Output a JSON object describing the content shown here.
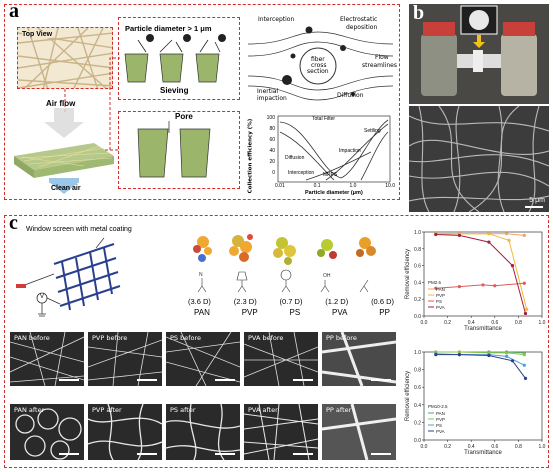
{
  "panel_a": {
    "letter": "a",
    "top_view": "Top View",
    "air_flow": "Air flow",
    "clean_air": "Clean air",
    "particle_diameter": "Particle diameter > 1 μm",
    "sieving": "Sieving",
    "pore": "Pore",
    "mechanisms": {
      "interception": "Interception",
      "electrostatic": "Electrostatic",
      "deposition": "deposition",
      "fiber_cross": "fiber",
      "cross_section": "cross",
      "section": "section",
      "flow": "Flow",
      "streamlines": "streamlines",
      "inertial": "Inertial",
      "impaction": "impaction",
      "diffusion": "Diffusion"
    },
    "efficiency_chart": {
      "ylabel": "Collection efficiency (%)",
      "xlabel": "Particle diameter (μm)",
      "yticks": [
        "100",
        "80",
        "60",
        "40",
        "20",
        "0"
      ],
      "xticks": [
        "0.01",
        "0.1",
        "1.0",
        "10.0"
      ],
      "labels": {
        "total": "Total Filter",
        "settling": "Settling",
        "impaction": "Impaction",
        "diffusion": "Diffusion",
        "interception": "Interception",
        "mpps": "MPPS"
      }
    }
  },
  "panel_b": {
    "letter": "b",
    "scale": "5 μm"
  },
  "panel_c": {
    "letter": "c",
    "window_label": "Window screen with metal coating",
    "v_label": "V",
    "polymers": [
      {
        "dipole": "(3.6 D)",
        "name": "PAN"
      },
      {
        "dipole": "(2.3 D)",
        "name": "PVP"
      },
      {
        "dipole": "(0.7 D)",
        "name": "PS"
      },
      {
        "dipole": "(1.2 D)",
        "name": "PVA"
      },
      {
        "dipole": "(0.6 D)",
        "name": "PP"
      }
    ],
    "sem_before": [
      "PAN before",
      "PVP before",
      "PS before",
      "PVA before",
      "PP before"
    ],
    "sem_after": [
      "PAN after",
      "PVP after",
      "PS after",
      "PVA after",
      "PP after"
    ]
  },
  "chart_data": [
    {
      "type": "line",
      "xlabel": "Transmittance",
      "ylabel": "Removal efficiency",
      "xlim": [
        0.0,
        1.0
      ],
      "ylim": [
        0.0,
        1.0
      ],
      "xticks": [
        "0.0",
        "0.2",
        "0.4",
        "0.6",
        "0.8",
        "1.0"
      ],
      "yticks": [
        "0.0",
        "0.2",
        "0.4",
        "0.6",
        "0.8",
        "1.0"
      ],
      "legend_title": "PM2.5",
      "legend_position": "bottom-left",
      "series": [
        {
          "name": "PAN",
          "color": "#f2a25c",
          "x": [
            0.1,
            0.3,
            0.55,
            0.7,
            0.85
          ],
          "y": [
            0.98,
            0.98,
            0.98,
            0.98,
            0.96
          ]
        },
        {
          "name": "PVP",
          "color": "#f0b93a",
          "x": [
            0.1,
            0.3,
            0.55,
            0.72,
            0.87
          ],
          "y": [
            0.98,
            0.98,
            0.98,
            0.9,
            0.08
          ]
        },
        {
          "name": "PS",
          "color": "#e25b5b",
          "x": [
            0.1,
            0.3,
            0.5,
            0.6,
            0.85
          ],
          "y": [
            0.33,
            0.35,
            0.37,
            0.36,
            0.39
          ]
        },
        {
          "name": "PVA",
          "color": "#a81c3c",
          "x": [
            0.1,
            0.3,
            0.55,
            0.75,
            0.86
          ],
          "y": [
            0.97,
            0.96,
            0.88,
            0.6,
            0.03
          ]
        }
      ]
    },
    {
      "type": "line",
      "xlabel": "Transmittance",
      "ylabel": "Removal efficiency",
      "xlim": [
        0.0,
        1.0
      ],
      "ylim": [
        0.0,
        1.0
      ],
      "xticks": [
        "0.0",
        "0.2",
        "0.4",
        "0.6",
        "0.8",
        "1.0"
      ],
      "yticks": [
        "0.0",
        "0.2",
        "0.4",
        "0.6",
        "0.8",
        "1.0"
      ],
      "legend_title": "PM10-2.5",
      "legend_position": "bottom-left",
      "series": [
        {
          "name": "PAN",
          "color": "#5aa866",
          "x": [
            0.1,
            0.3,
            0.55,
            0.7,
            0.85
          ],
          "y": [
            1.0,
            1.0,
            1.0,
            1.0,
            0.99
          ]
        },
        {
          "name": "PVP",
          "color": "#8bc34a",
          "x": [
            0.1,
            0.3,
            0.55,
            0.7,
            0.85
          ],
          "y": [
            1.0,
            1.0,
            0.99,
            0.99,
            0.97
          ]
        },
        {
          "name": "PS",
          "color": "#4f9fd6",
          "x": [
            0.1,
            0.3,
            0.55,
            0.7,
            0.85
          ],
          "y": [
            0.98,
            0.97,
            0.97,
            0.95,
            0.85
          ]
        },
        {
          "name": "PVA",
          "color": "#2d3f8f",
          "x": [
            0.1,
            0.3,
            0.55,
            0.75,
            0.86
          ],
          "y": [
            0.97,
            0.97,
            0.96,
            0.9,
            0.7
          ]
        }
      ]
    }
  ]
}
